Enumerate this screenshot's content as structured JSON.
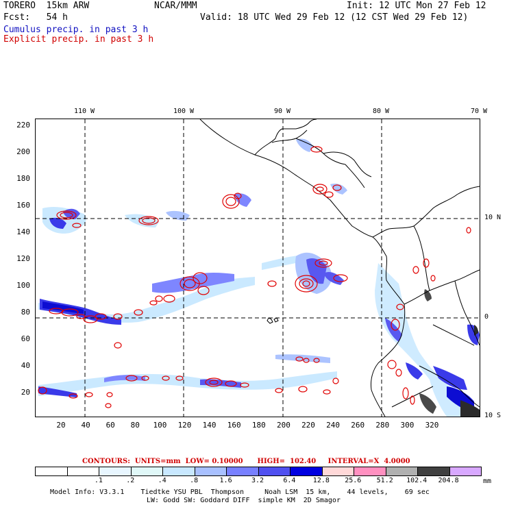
{
  "header": {
    "model_name": "TORERO  15km ARW",
    "org": "NCAR/MMM",
    "init": "Init: 12 UTC Mon 27 Feb 12",
    "fcst": "Fcst:   54 h",
    "valid": "Valid: 18 UTC Wed 29 Feb 12 (12 CST Wed 29 Feb 12)",
    "field1": "Cumulus precip. in past 3 h",
    "field2": "Explicit precip. in past 3 h"
  },
  "colors": {
    "cumulus_text": "#1010c0",
    "explicit_text": "#d00000",
    "contour": "#e00000"
  },
  "map": {
    "y_ticks": [
      "220",
      "200",
      "180",
      "160",
      "140",
      "120",
      "100",
      "80",
      "60",
      "40",
      "20"
    ],
    "x_ticks": [
      "20",
      "40",
      "60",
      "80",
      "100",
      "120",
      "140",
      "160",
      "180",
      "200",
      "220",
      "240",
      "260",
      "280",
      "300",
      "320"
    ],
    "lon_labels": [
      "110 W",
      "100 W",
      "90 W",
      "80 W",
      "70 W"
    ],
    "lat_labels": [
      "10 N",
      "0",
      "10 S"
    ]
  },
  "legend": {
    "contours": "CONTOURS:  UNITS=mm  LOW= 0.10000      HIGH=  102.40     INTERVAL=X  4.0000",
    "colors": [
      "#ffffff",
      "#ffffff",
      "#e8f6ff",
      "#e0f8f8",
      "#c8e8ff",
      "#a8c0ff",
      "#7880ff",
      "#5050f0",
      "#0000e0",
      "#ffd8d8",
      "#ff90c0",
      "#b0b0b0",
      "#404040",
      "#d8a8ff"
    ],
    "labels": [
      ".1",
      ".2",
      ".4",
      ".8",
      "1.6",
      "3.2",
      "6.4",
      "12.8",
      "25.6",
      "51.2",
      "102.4",
      "204.8"
    ],
    "units": "mm"
  },
  "footer": {
    "line1": "Model Info: V3.3.1    Tiedtke YSU PBL  Thompson     Noah LSM  15 km,    44 levels,    69 sec",
    "line2": "LW: Godd SW: Goddard DIFF  simple KM  2D Smagor"
  }
}
